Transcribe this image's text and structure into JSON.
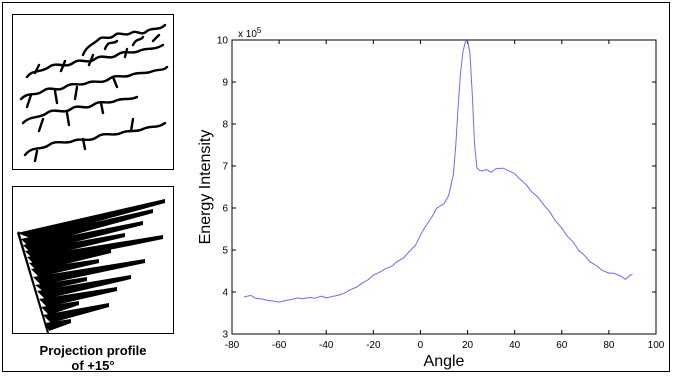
{
  "caption": {
    "line1": "Projection profile",
    "line2": "of  +15°"
  },
  "colors": {
    "line": "#6b6bff",
    "ink": "#000000"
  },
  "chart_data": {
    "type": "line",
    "title": "",
    "xlabel": "Angle",
    "ylabel": "Energy Intensity",
    "y_exponent_label": "x 10",
    "y_exponent_power": "5",
    "xlim": [
      -80,
      100
    ],
    "ylim": [
      3,
      10
    ],
    "xticks": [
      "-80",
      "-60",
      "-40",
      "-20",
      "0",
      "20",
      "40",
      "60",
      "80",
      "100"
    ],
    "yticks": [
      "3",
      "4",
      "5",
      "6",
      "7",
      "8",
      "9",
      "10"
    ],
    "grid": false,
    "series": [
      {
        "x": [
          -75,
          -72,
          -70,
          -67,
          -65,
          -62,
          -60,
          -57,
          -55,
          -52,
          -50,
          -47,
          -45,
          -42,
          -40,
          -37,
          -35,
          -32,
          -30,
          -27,
          -25,
          -22,
          -20,
          -17,
          -15,
          -12,
          -10,
          -7,
          -5,
          -2,
          0,
          2,
          5,
          7,
          10,
          12,
          14,
          15,
          16,
          17,
          18,
          19,
          20,
          21,
          22,
          23,
          24,
          25,
          26,
          28,
          30,
          32,
          35,
          37,
          40,
          42,
          45,
          47,
          50,
          52,
          55,
          57,
          60,
          62,
          65,
          67,
          70,
          72,
          75,
          77,
          80,
          82,
          85,
          87,
          89,
          90
        ],
        "y": [
          3.88,
          3.92,
          3.85,
          3.83,
          3.8,
          3.78,
          3.76,
          3.8,
          3.82,
          3.86,
          3.84,
          3.87,
          3.85,
          3.9,
          3.86,
          3.9,
          3.92,
          3.98,
          4.05,
          4.12,
          4.2,
          4.3,
          4.4,
          4.48,
          4.55,
          4.62,
          4.72,
          4.82,
          4.95,
          5.12,
          5.35,
          5.55,
          5.8,
          6.0,
          6.1,
          6.3,
          6.8,
          7.5,
          8.4,
          9.2,
          9.7,
          9.95,
          9.98,
          9.7,
          8.7,
          7.5,
          6.95,
          6.9,
          6.88,
          6.92,
          6.85,
          6.93,
          6.95,
          6.9,
          6.82,
          6.7,
          6.55,
          6.4,
          6.25,
          6.1,
          5.9,
          5.72,
          5.52,
          5.35,
          5.18,
          5.0,
          4.85,
          4.72,
          4.62,
          4.52,
          4.45,
          4.45,
          4.38,
          4.3,
          4.4,
          4.42
        ]
      }
    ]
  }
}
